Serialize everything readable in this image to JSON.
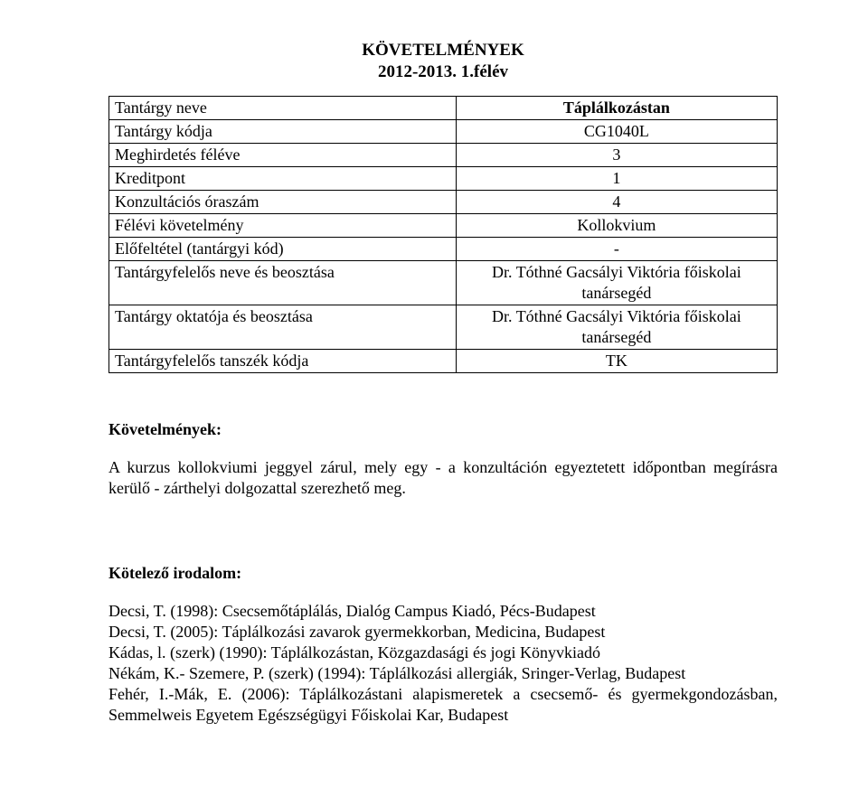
{
  "header": {
    "title_line1": "KÖVETELMÉNYEK",
    "title_line2": "2012-2013. 1.félév"
  },
  "table": {
    "rows": [
      {
        "label": "Tantárgy neve",
        "value": "Táplálkozástan",
        "value_bold": true
      },
      {
        "label": "Tantárgy kódja",
        "value": "CG1040L"
      },
      {
        "label": "Meghirdetés féléve",
        "value": "3"
      },
      {
        "label": "Kreditpont",
        "value": "1"
      },
      {
        "label": "Konzultációs óraszám",
        "value": "4"
      },
      {
        "label": "Félévi követelmény",
        "value": "Kollokvium"
      },
      {
        "label": "Előfeltétel (tantárgyi kód)",
        "value": "-"
      },
      {
        "label": "Tantárgyfelelős neve és beosztása",
        "value": "Dr. Tóthné Gacsályi Viktória főiskolai tanársegéd"
      },
      {
        "label": "Tantárgy oktatója és beosztása",
        "value": "Dr. Tóthné Gacsályi Viktória főiskolai tanársegéd"
      },
      {
        "label": "Tantárgyfelelős tanszék kódja",
        "value": "TK"
      }
    ]
  },
  "requirements": {
    "heading": "Követelmények:",
    "text": "A kurzus kollokviumi jeggyel zárul, mely egy - a konzultáción egyeztetett időpontban megírásra kerülő - zárthelyi dolgozattal szerezhető meg."
  },
  "bibliography": {
    "heading": "Kötelező irodalom:",
    "entries": [
      "Decsi, T. (1998): Csecsemőtáplálás, Dialóg Campus Kiadó, Pécs-Budapest",
      "Decsi, T. (2005): Táplálkozási zavarok gyermekkorban, Medicina, Budapest",
      "Kádas, l. (szerk) (1990): Táplálkozástan, Közgazdasági és jogi Könyvkiadó",
      "Nékám, K.- Szemere, P. (szerk) (1994): Táplálkozási allergiák, Sringer-Verlag, Budapest",
      "Fehér, I.-Mák, E. (2006): Táplálkozástani alapismeretek a csecsemő- és gyermekgondozásban, Semmelweis Egyetem Egészségügyi Főiskolai Kar, Budapest"
    ]
  },
  "colors": {
    "text": "#000000",
    "background": "#ffffff",
    "border": "#000000"
  },
  "fonts": {
    "family": "Times New Roman",
    "body_size_pt": 14,
    "header_size_pt": 14,
    "header_weight": "bold"
  }
}
